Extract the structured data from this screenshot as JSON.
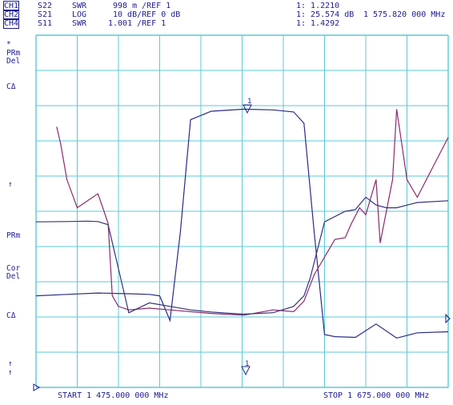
{
  "header": {
    "rows": [
      {
        "ch": "CH1",
        "param": "S22",
        "fmt": "SWR",
        "scale": "998 m /REF 1",
        "mkr": "1: 1.2210",
        "freq": ""
      },
      {
        "ch": "CH2",
        "param": "S21",
        "fmt": "LOG",
        "scale": "10 dB/REF 0 dB",
        "mkr": "1: 25.574 dB",
        "freq": "1 575.820 000 MHz"
      },
      {
        "ch": "CH4",
        "param": "S11",
        "fmt": "SWR",
        "scale": "1.001 /REF 1",
        "mkr": "1: 1.4292",
        "freq": ""
      }
    ]
  },
  "side_labels": {
    "star": "*",
    "prm1": "PRm",
    "del1": "Del",
    "ca1": "CΔ",
    "arrow1": "↑",
    "prm2": "PRm",
    "cor": "Cor",
    "del2": "Del",
    "ca2": "CΔ",
    "arrow2a": "↑",
    "arrow2b": "↑"
  },
  "footer": {
    "start": "START 1 475.000 000 MHz",
    "stop": "STOP 1 675.000 000 MHz"
  },
  "markers": {
    "top": "1",
    "bottom": "1"
  },
  "colors": {
    "grid": "#5bc8d4",
    "trace_s21": "#2a2a88",
    "trace_s22": "#8a2a6a",
    "trace_s11": "#33337a",
    "text": "#1b1b8f"
  },
  "chart_data": {
    "type": "line",
    "xlim": [
      1475,
      1675
    ],
    "x_unit": "MHz",
    "grid": true,
    "series": [
      {
        "name": "S21",
        "x": [
          1475,
          1490,
          1505,
          1520,
          1530,
          1535,
          1540,
          1545,
          1550,
          1560,
          1575.82,
          1590,
          1600,
          1605,
          1610,
          1615,
          1620,
          1630,
          1640,
          1650,
          1660,
          1675
        ],
        "y": [
          -53,
          -52.6,
          -52.2,
          -52.4,
          -52.6,
          -53,
          -60,
          -35,
          -3,
          -0.6,
          0,
          -0.2,
          -0.8,
          -4,
          -35,
          -64,
          -64.6,
          -64.8,
          -61,
          -65,
          -63.5,
          -63.2
        ]
      },
      {
        "name": "S22",
        "x": [
          1485,
          1487,
          1490,
          1495,
          1505,
          1508,
          1510,
          1512,
          1515,
          1520,
          1530,
          1540,
          1560,
          1575.82,
          1590,
          1600,
          1605,
          1610,
          1620,
          1625,
          1628,
          1632,
          1635,
          1640,
          1642,
          1648,
          1650,
          1655,
          1660,
          1675
        ],
        "y": [
          3.5,
          3.0,
          2.0,
          1.2,
          1.6,
          1.1,
          0.75,
          -1.3,
          -1.6,
          -1.7,
          -1.65,
          -1.7,
          -1.8,
          -1.85,
          -1.7,
          -1.75,
          -1.45,
          -0.7,
          0.3,
          0.35,
          0.75,
          1.2,
          1.0,
          2.0,
          0.2,
          2.0,
          4.0,
          2.0,
          1.5,
          3.2
        ]
      },
      {
        "name": "S11",
        "x": [
          1475,
          1490,
          1500,
          1505,
          1510,
          1520,
          1530,
          1540,
          1550,
          1560,
          1570,
          1575.82,
          1590,
          1600,
          1605,
          1608,
          1615,
          1625,
          1630,
          1635,
          1640,
          1645,
          1650,
          1660,
          1675
        ],
        "y": [
          0.8,
          0.81,
          0.82,
          0.81,
          0.72,
          -1.78,
          -1.5,
          -1.6,
          -1.7,
          -1.76,
          -1.8,
          -1.82,
          -1.78,
          -1.6,
          -1.3,
          -0.8,
          0.8,
          1.1,
          1.15,
          1.5,
          1.28,
          1.2,
          1.2,
          1.35,
          1.4
        ]
      }
    ]
  }
}
